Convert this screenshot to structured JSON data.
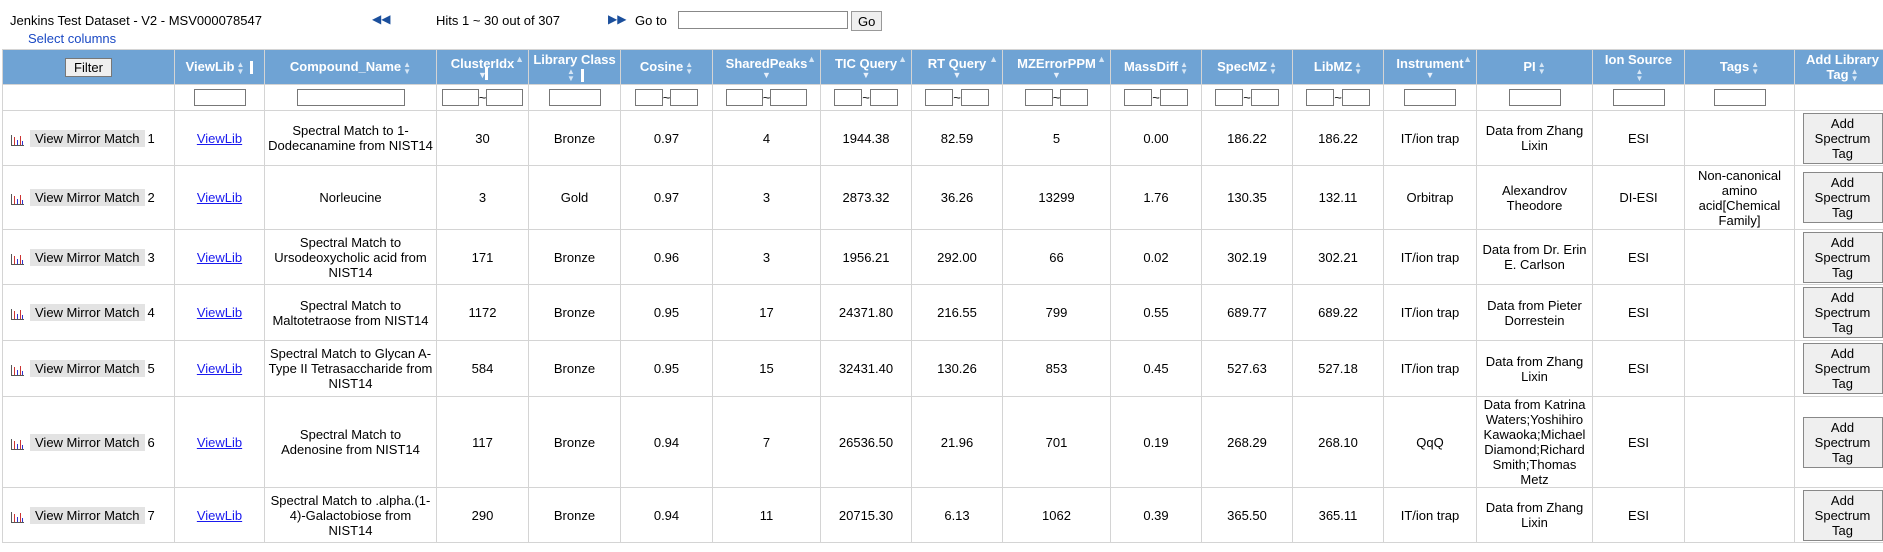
{
  "header": {
    "title": "Jenkins Test Dataset - V2 - MSV000078547",
    "hits": "Hits 1 ~ 30 out of 307",
    "goto_label": "Go to",
    "go_button": "Go",
    "select_columns": "Select columns",
    "filter_button": "Filter"
  },
  "columns": [
    "ViewLib",
    "Compound_Name",
    "ClusterIdx",
    "Library Class",
    "Cosine",
    "SharedPeaks",
    "TIC Query",
    "RT Query",
    "MZErrorPPM",
    "MassDiff",
    "SpecMZ",
    "LibMZ",
    "Instrument",
    "PI",
    "Ion Source",
    "Tags",
    "Add Library Tag"
  ],
  "range_sep": "~",
  "row_actions": {
    "mirror_label": "View Mirror Match",
    "viewlib_label": "ViewLib",
    "tag_label": "Add Spectrum Tag"
  },
  "rows": [
    {
      "n": "1",
      "compound": "Spectral Match to 1-Dodecanamine from NIST14",
      "cluster": "30",
      "lib_class": "Bronze",
      "cosine": "0.97",
      "shared": "4",
      "tic": "1944.38",
      "rt": "82.59",
      "ppm": "5",
      "massdiff": "0.00",
      "specmz": "186.22",
      "libmz": "186.22",
      "instrument": "IT/ion trap",
      "pi": "Data from Zhang Lixin",
      "ion_source": "ESI",
      "tags": ""
    },
    {
      "n": "2",
      "compound": "Norleucine",
      "cluster": "3",
      "lib_class": "Gold",
      "cosine": "0.97",
      "shared": "3",
      "tic": "2873.32",
      "rt": "36.26",
      "ppm": "13299",
      "massdiff": "1.76",
      "specmz": "130.35",
      "libmz": "132.11",
      "instrument": "Orbitrap",
      "pi": "Alexandrov Theodore",
      "ion_source": "DI-ESI",
      "tags": "Non-canonical amino acid[Chemical Family]"
    },
    {
      "n": "3",
      "compound": "Spectral Match to Ursodeoxycholic acid from NIST14",
      "cluster": "171",
      "lib_class": "Bronze",
      "cosine": "0.96",
      "shared": "3",
      "tic": "1956.21",
      "rt": "292.00",
      "ppm": "66",
      "massdiff": "0.02",
      "specmz": "302.19",
      "libmz": "302.21",
      "instrument": "IT/ion trap",
      "pi": "Data from Dr. Erin E. Carlson",
      "ion_source": "ESI",
      "tags": ""
    },
    {
      "n": "4",
      "compound": "Spectral Match to Maltotetraose from NIST14",
      "cluster": "1172",
      "lib_class": "Bronze",
      "cosine": "0.95",
      "shared": "17",
      "tic": "24371.80",
      "rt": "216.55",
      "ppm": "799",
      "massdiff": "0.55",
      "specmz": "689.77",
      "libmz": "689.22",
      "instrument": "IT/ion trap",
      "pi": "Data from Pieter Dorrestein",
      "ion_source": "ESI",
      "tags": ""
    },
    {
      "n": "5",
      "compound": "Spectral Match to Glycan A-Type II Tetrasaccharide from NIST14",
      "cluster": "584",
      "lib_class": "Bronze",
      "cosine": "0.95",
      "shared": "15",
      "tic": "32431.40",
      "rt": "130.26",
      "ppm": "853",
      "massdiff": "0.45",
      "specmz": "527.63",
      "libmz": "527.18",
      "instrument": "IT/ion trap",
      "pi": "Data from Zhang Lixin",
      "ion_source": "ESI",
      "tags": ""
    },
    {
      "n": "6",
      "compound": "Spectral Match to Adenosine from NIST14",
      "cluster": "117",
      "lib_class": "Bronze",
      "cosine": "0.94",
      "shared": "7",
      "tic": "26536.50",
      "rt": "21.96",
      "ppm": "701",
      "massdiff": "0.19",
      "specmz": "268.29",
      "libmz": "268.10",
      "instrument": "QqQ",
      "pi": "Data from Katrina Waters;Yoshihiro Kawaoka;Michael Diamond;Richard Smith;Thomas Metz",
      "ion_source": "ESI",
      "tags": ""
    },
    {
      "n": "7",
      "compound": "Spectral Match to .alpha.(1-4)-Galactobiose from NIST14",
      "cluster": "290",
      "lib_class": "Bronze",
      "cosine": "0.94",
      "shared": "11",
      "tic": "20715.30",
      "rt": "6.13",
      "ppm": "1062",
      "massdiff": "0.39",
      "specmz": "365.50",
      "libmz": "365.11",
      "instrument": "IT/ion trap",
      "pi": "Data from Zhang Lixin",
      "ion_source": "ESI",
      "tags": ""
    }
  ]
}
